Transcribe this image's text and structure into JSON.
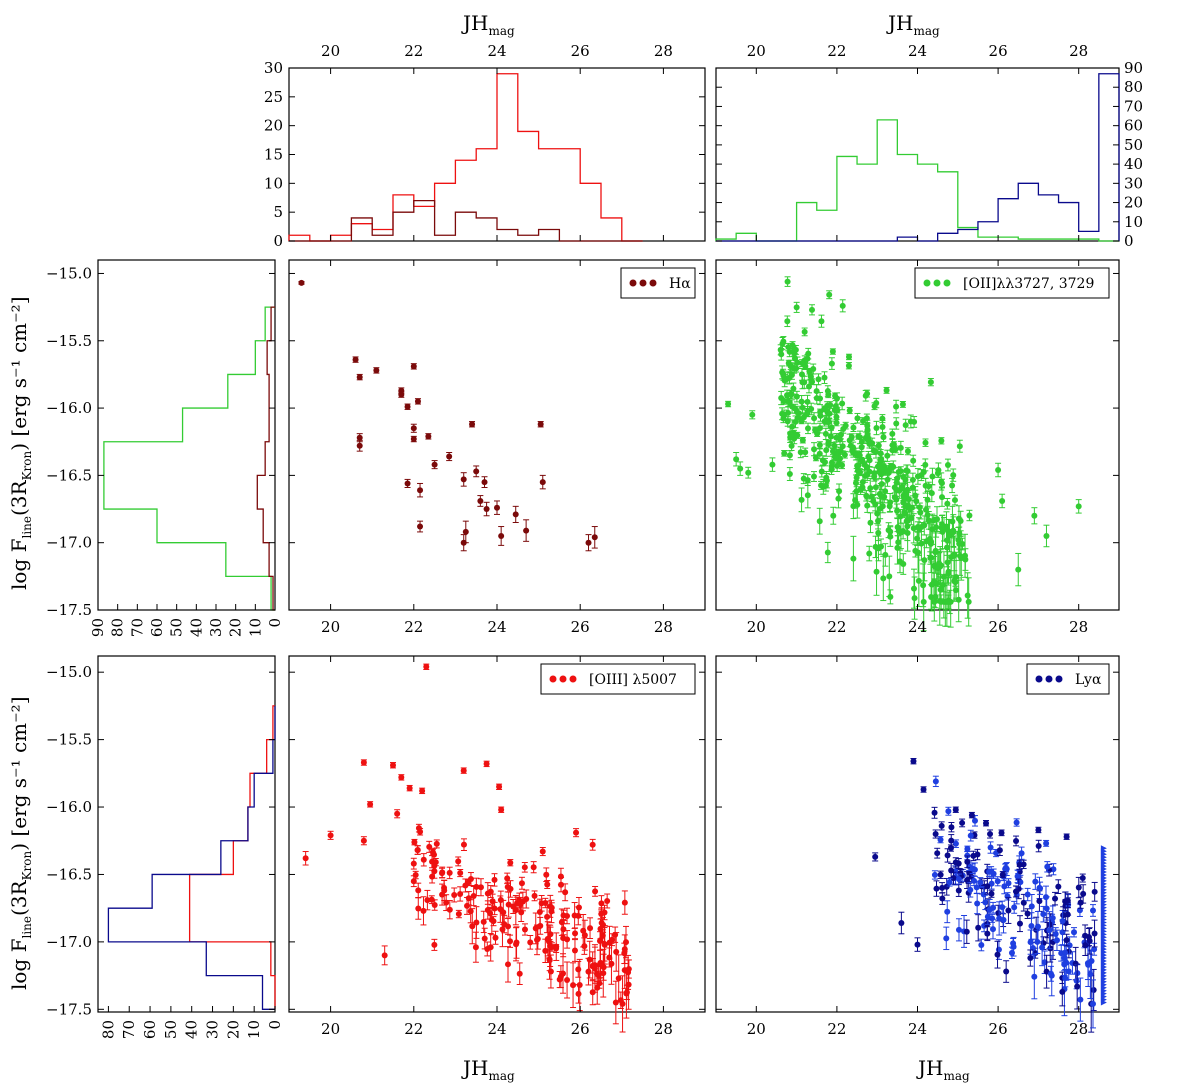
{
  "colors": {
    "ha": "#7b0a0a",
    "oii": "#33cc33",
    "oiii": "#ee1111",
    "lya": "#0a0a8c",
    "lya_light": "#1f3fe0",
    "green_dark": "#005f00",
    "red_light": "#e83a3a",
    "blue_light": "#1010cc"
  },
  "labels": {
    "x_axis": "JH",
    "x_axis_sub": "mag",
    "y_axis_main": "log F",
    "y_axis_sub": "line",
    "y_axis_tail": "(3R",
    "y_axis_sub2": "Kron",
    "y_axis_unit": ") [erg s⁻¹ cm⁻²]"
  },
  "chart_data": [
    {
      "id": "hist_top_left",
      "type": "histogram",
      "xlabel": "JHmag",
      "xlim": [
        19,
        29
      ],
      "ylim": [
        0,
        30
      ],
      "xticks": [
        "20",
        "22",
        "24",
        "26",
        "28"
      ],
      "yticks": [
        "0",
        "5",
        "10",
        "15",
        "20",
        "25",
        "30"
      ],
      "bin_edges": [
        19,
        19.5,
        20,
        20.5,
        21,
        21.5,
        22,
        22.5,
        23,
        23.5,
        24,
        24.5,
        25,
        25.5,
        26,
        26.5,
        27,
        27.5
      ],
      "series": [
        {
          "name": "[OIII]λ5007",
          "color": "oiii",
          "values": [
            1,
            0,
            1,
            3,
            2,
            8,
            6,
            10,
            14,
            16,
            29,
            19,
            16,
            16,
            10,
            4,
            0
          ]
        },
        {
          "name": "Hα",
          "color": "ha",
          "values": [
            0,
            0,
            0,
            4,
            1,
            5,
            7,
            1,
            5,
            4,
            2,
            1,
            2,
            0,
            0,
            0,
            0
          ]
        }
      ]
    },
    {
      "id": "hist_top_right",
      "type": "histogram",
      "xlabel": "JHmag",
      "xlim": [
        19,
        29
      ],
      "ylim": [
        0,
        90
      ],
      "xticks": [
        "20",
        "22",
        "24",
        "26",
        "28"
      ],
      "yticks": [
        "0",
        "10",
        "20",
        "30",
        "40",
        "50",
        "60",
        "70",
        "80",
        "90"
      ],
      "bin_edges": [
        19,
        19.5,
        20,
        20.5,
        21,
        21.5,
        22,
        22.5,
        23,
        23.5,
        24,
        24.5,
        25,
        25.5,
        26,
        26.5,
        27,
        27.5,
        28,
        28.5,
        29
      ],
      "series": [
        {
          "name": "[OII]λλ3727,3729",
          "color": "oii",
          "values": [
            1,
            4,
            0,
            0,
            20,
            16,
            44,
            40,
            63,
            45,
            40,
            36,
            7,
            2,
            2,
            1,
            1,
            1,
            1,
            0
          ]
        },
        {
          "name": "Lyα",
          "color": "lya",
          "values": [
            0,
            0,
            0,
            0,
            0,
            0,
            0,
            0,
            0,
            2,
            0,
            4,
            6,
            10,
            22,
            30,
            24,
            20,
            5,
            87
          ]
        }
      ]
    },
    {
      "id": "hist_side_upper",
      "type": "histogram_horizontal",
      "xlim": [
        90,
        0
      ],
      "ylim": [
        -17.5,
        -14.9
      ],
      "xticks": [
        "90",
        "80",
        "70",
        "60",
        "50",
        "40",
        "30",
        "20",
        "10",
        "0"
      ],
      "bin_edges": [
        -17.5,
        -17.25,
        -17.0,
        -16.75,
        -16.5,
        -16.25,
        -16.0,
        -15.75,
        -15.5,
        -15.25
      ],
      "series": [
        {
          "name": "[OII]λλ3727,3729",
          "color": "oii",
          "values": [
            2,
            25,
            60,
            87,
            87,
            47,
            24,
            10,
            5
          ]
        },
        {
          "name": "Hα",
          "color": "ha",
          "values": [
            1,
            3,
            6,
            9,
            5,
            3,
            3,
            4,
            2
          ]
        }
      ]
    },
    {
      "id": "scatter_halpha",
      "type": "scatter",
      "legend": "Hα",
      "legend_loc": "top-right",
      "color": "ha",
      "xlim": [
        19,
        29
      ],
      "ylim": [
        -17.5,
        -14.9
      ],
      "xticks": [
        "20",
        "22",
        "24",
        "26",
        "28"
      ],
      "yticks": [
        "−15.0",
        "−15.5",
        "−16.0",
        "−16.5",
        "−17.0",
        "−17.5"
      ],
      "points": [
        [
          19.3,
          -15.07,
          0.01
        ],
        [
          20.6,
          -15.64,
          0.02
        ],
        [
          20.7,
          -15.77,
          0.02
        ],
        [
          20.7,
          -16.22,
          0.03
        ],
        [
          20.7,
          -16.28,
          0.04
        ],
        [
          21.1,
          -15.72,
          0.02
        ],
        [
          21.7,
          -15.87,
          0.02
        ],
        [
          21.7,
          -15.9,
          0.02
        ],
        [
          21.85,
          -15.99,
          0.02
        ],
        [
          21.85,
          -16.56,
          0.03
        ],
        [
          22.0,
          -15.69,
          0.02
        ],
        [
          22.0,
          -16.15,
          0.03
        ],
        [
          22.0,
          -16.23,
          0.02
        ],
        [
          22.1,
          -15.95,
          0.02
        ],
        [
          22.15,
          -16.61,
          0.05
        ],
        [
          22.15,
          -16.88,
          0.04
        ],
        [
          22.35,
          -16.21,
          0.02
        ],
        [
          22.5,
          -16.42,
          0.03
        ],
        [
          22.85,
          -16.36,
          0.03
        ],
        [
          23.2,
          -16.53,
          0.05
        ],
        [
          23.2,
          -17.0,
          0.06
        ],
        [
          23.25,
          -16.92,
          0.08
        ],
        [
          23.4,
          -16.12,
          0.02
        ],
        [
          23.5,
          -16.47,
          0.04
        ],
        [
          23.6,
          -16.69,
          0.04
        ],
        [
          23.7,
          -16.55,
          0.04
        ],
        [
          23.75,
          -16.75,
          0.05
        ],
        [
          24.0,
          -16.74,
          0.05
        ],
        [
          24.1,
          -16.95,
          0.07
        ],
        [
          24.45,
          -16.79,
          0.06
        ],
        [
          24.7,
          -16.91,
          0.08
        ],
        [
          25.1,
          -16.55,
          0.05
        ],
        [
          25.05,
          -16.12,
          0.02
        ],
        [
          26.2,
          -17.0,
          0.06
        ],
        [
          26.35,
          -16.96,
          0.08
        ]
      ]
    },
    {
      "id": "scatter_oii",
      "type": "scatter",
      "legend": "[OII]λλ3727, 3729",
      "legend_loc": "top-right",
      "color": "oii",
      "xlim": [
        19,
        29
      ],
      "ylim": [
        -17.5,
        -14.9
      ],
      "xticks": [
        "20",
        "22",
        "24",
        "26",
        "28"
      ],
      "yticks": [
        "−15.0",
        "−15.5",
        "−16.0",
        "−16.5",
        "−17.0",
        "−17.5"
      ],
      "cloud": {
        "x_range": [
          20.6,
          25.3
        ],
        "y_center_at_x20": -15.6,
        "slope": -0.3,
        "scatter": 0.32,
        "count": 460
      },
      "points": [
        [
          19.3,
          -15.97,
          0.02
        ],
        [
          19.5,
          -16.38,
          0.05
        ],
        [
          19.6,
          -16.45,
          0.05
        ],
        [
          19.8,
          -16.48,
          0.04
        ],
        [
          19.9,
          -16.05,
          0.03
        ],
        [
          20.4,
          -16.42,
          0.05
        ],
        [
          21.9,
          -15.58,
          0.02
        ],
        [
          22.3,
          -15.62,
          0.02
        ],
        [
          26.0,
          -16.46,
          0.05
        ],
        [
          26.1,
          -16.69,
          0.05
        ],
        [
          26.5,
          -17.2,
          0.12
        ],
        [
          26.9,
          -16.8,
          0.06
        ],
        [
          27.2,
          -16.95,
          0.08
        ],
        [
          28.0,
          -16.73,
          0.05
        ],
        [
          23.3,
          -17.25,
          0.15
        ]
      ]
    },
    {
      "id": "hist_side_lower",
      "type": "histogram_horizontal",
      "xlim": [
        85,
        0
      ],
      "ylim": [
        -17.52,
        -14.88
      ],
      "xticks": [
        "80",
        "70",
        "60",
        "50",
        "40",
        "30",
        "20",
        "10",
        "0"
      ],
      "bin_edges": [
        -17.5,
        -17.25,
        -17.0,
        -16.75,
        -16.5,
        -16.25,
        -16.0,
        -15.75,
        -15.5,
        -15.25
      ],
      "series": [
        {
          "name": "[OIII]λ5007",
          "color": "oiii",
          "values": [
            0,
            2,
            41,
            41,
            20,
            13,
            12,
            4,
            1
          ]
        },
        {
          "name": "Lyα",
          "color": "lya",
          "values": [
            6,
            33,
            80,
            59,
            26,
            13,
            10,
            1,
            0
          ]
        }
      ]
    },
    {
      "id": "scatter_oiii",
      "type": "scatter",
      "legend": "[OIII] λ5007",
      "legend_loc": "top-right",
      "color": "oiii",
      "xlim": [
        19,
        29
      ],
      "ylim": [
        -17.52,
        -14.88
      ],
      "xticks": [
        "20",
        "22",
        "24",
        "26",
        "28"
      ],
      "yticks": [
        "−15.0",
        "−15.5",
        "−16.0",
        "−16.5",
        "−17.0",
        "−17.5"
      ],
      "cloud": {
        "x_range": [
          22.0,
          27.2
        ],
        "y_center_at_x20": -16.25,
        "slope": -0.13,
        "scatter": 0.22,
        "count": 190
      },
      "points": [
        [
          19.4,
          -16.38,
          0.05
        ],
        [
          20.0,
          -16.21,
          0.03
        ],
        [
          20.8,
          -16.25,
          0.03
        ],
        [
          20.8,
          -15.67,
          0.02
        ],
        [
          20.95,
          -15.98,
          0.02
        ],
        [
          21.3,
          -17.1,
          0.07
        ],
        [
          21.5,
          -15.69,
          0.02
        ],
        [
          21.6,
          -16.05,
          0.03
        ],
        [
          21.7,
          -15.78,
          0.02
        ],
        [
          21.9,
          -15.86,
          0.02
        ],
        [
          22.0,
          -16.42,
          0.04
        ],
        [
          22.0,
          -16.55,
          0.04
        ],
        [
          22.3,
          -14.96,
          0.02
        ],
        [
          22.2,
          -15.88,
          0.02
        ],
        [
          23.2,
          -15.73,
          0.02
        ],
        [
          23.75,
          -15.68,
          0.02
        ],
        [
          24.05,
          -15.85,
          0.02
        ],
        [
          24.1,
          -16.02,
          0.02
        ],
        [
          25.1,
          -16.33,
          0.03
        ],
        [
          26.3,
          -16.28,
          0.04
        ],
        [
          25.9,
          -16.19,
          0.03
        ]
      ]
    },
    {
      "id": "scatter_lya",
      "type": "scatter",
      "legend": "Lyα",
      "legend_loc": "top-right",
      "color": "lya",
      "xlim": [
        19,
        29
      ],
      "ylim": [
        -17.52,
        -14.88
      ],
      "xticks": [
        "20",
        "22",
        "24",
        "26",
        "28"
      ],
      "yticks": [
        "−15.0",
        "−15.5",
        "−16.0",
        "−16.5",
        "−17.0",
        "−17.5"
      ],
      "cloud": {
        "x_range": [
          24.4,
          28.4
        ],
        "y_center_at_x20": -15.5,
        "slope": -0.19,
        "scatter": 0.25,
        "count": 210
      },
      "upper_limits_x": 28.6,
      "points": [
        [
          22.95,
          -16.37,
          0.03
        ],
        [
          23.6,
          -16.86,
          0.08
        ],
        [
          23.9,
          -15.66,
          0.02
        ],
        [
          24.0,
          -17.02,
          0.05
        ],
        [
          24.15,
          -15.87,
          0.02
        ],
        [
          24.45,
          -16.2,
          0.03
        ],
        [
          24.6,
          -16.14,
          0.03
        ],
        [
          24.95,
          -16.02,
          0.02
        ],
        [
          25.35,
          -16.06,
          0.02
        ],
        [
          25.8,
          -16.2,
          0.03
        ],
        [
          25.7,
          -16.12,
          0.02
        ],
        [
          26.2,
          -17.22,
          0.08
        ],
        [
          26.8,
          -17.12,
          0.06
        ],
        [
          27.0,
          -16.17,
          0.02
        ],
        [
          27.7,
          -16.22,
          0.02
        ]
      ]
    }
  ]
}
